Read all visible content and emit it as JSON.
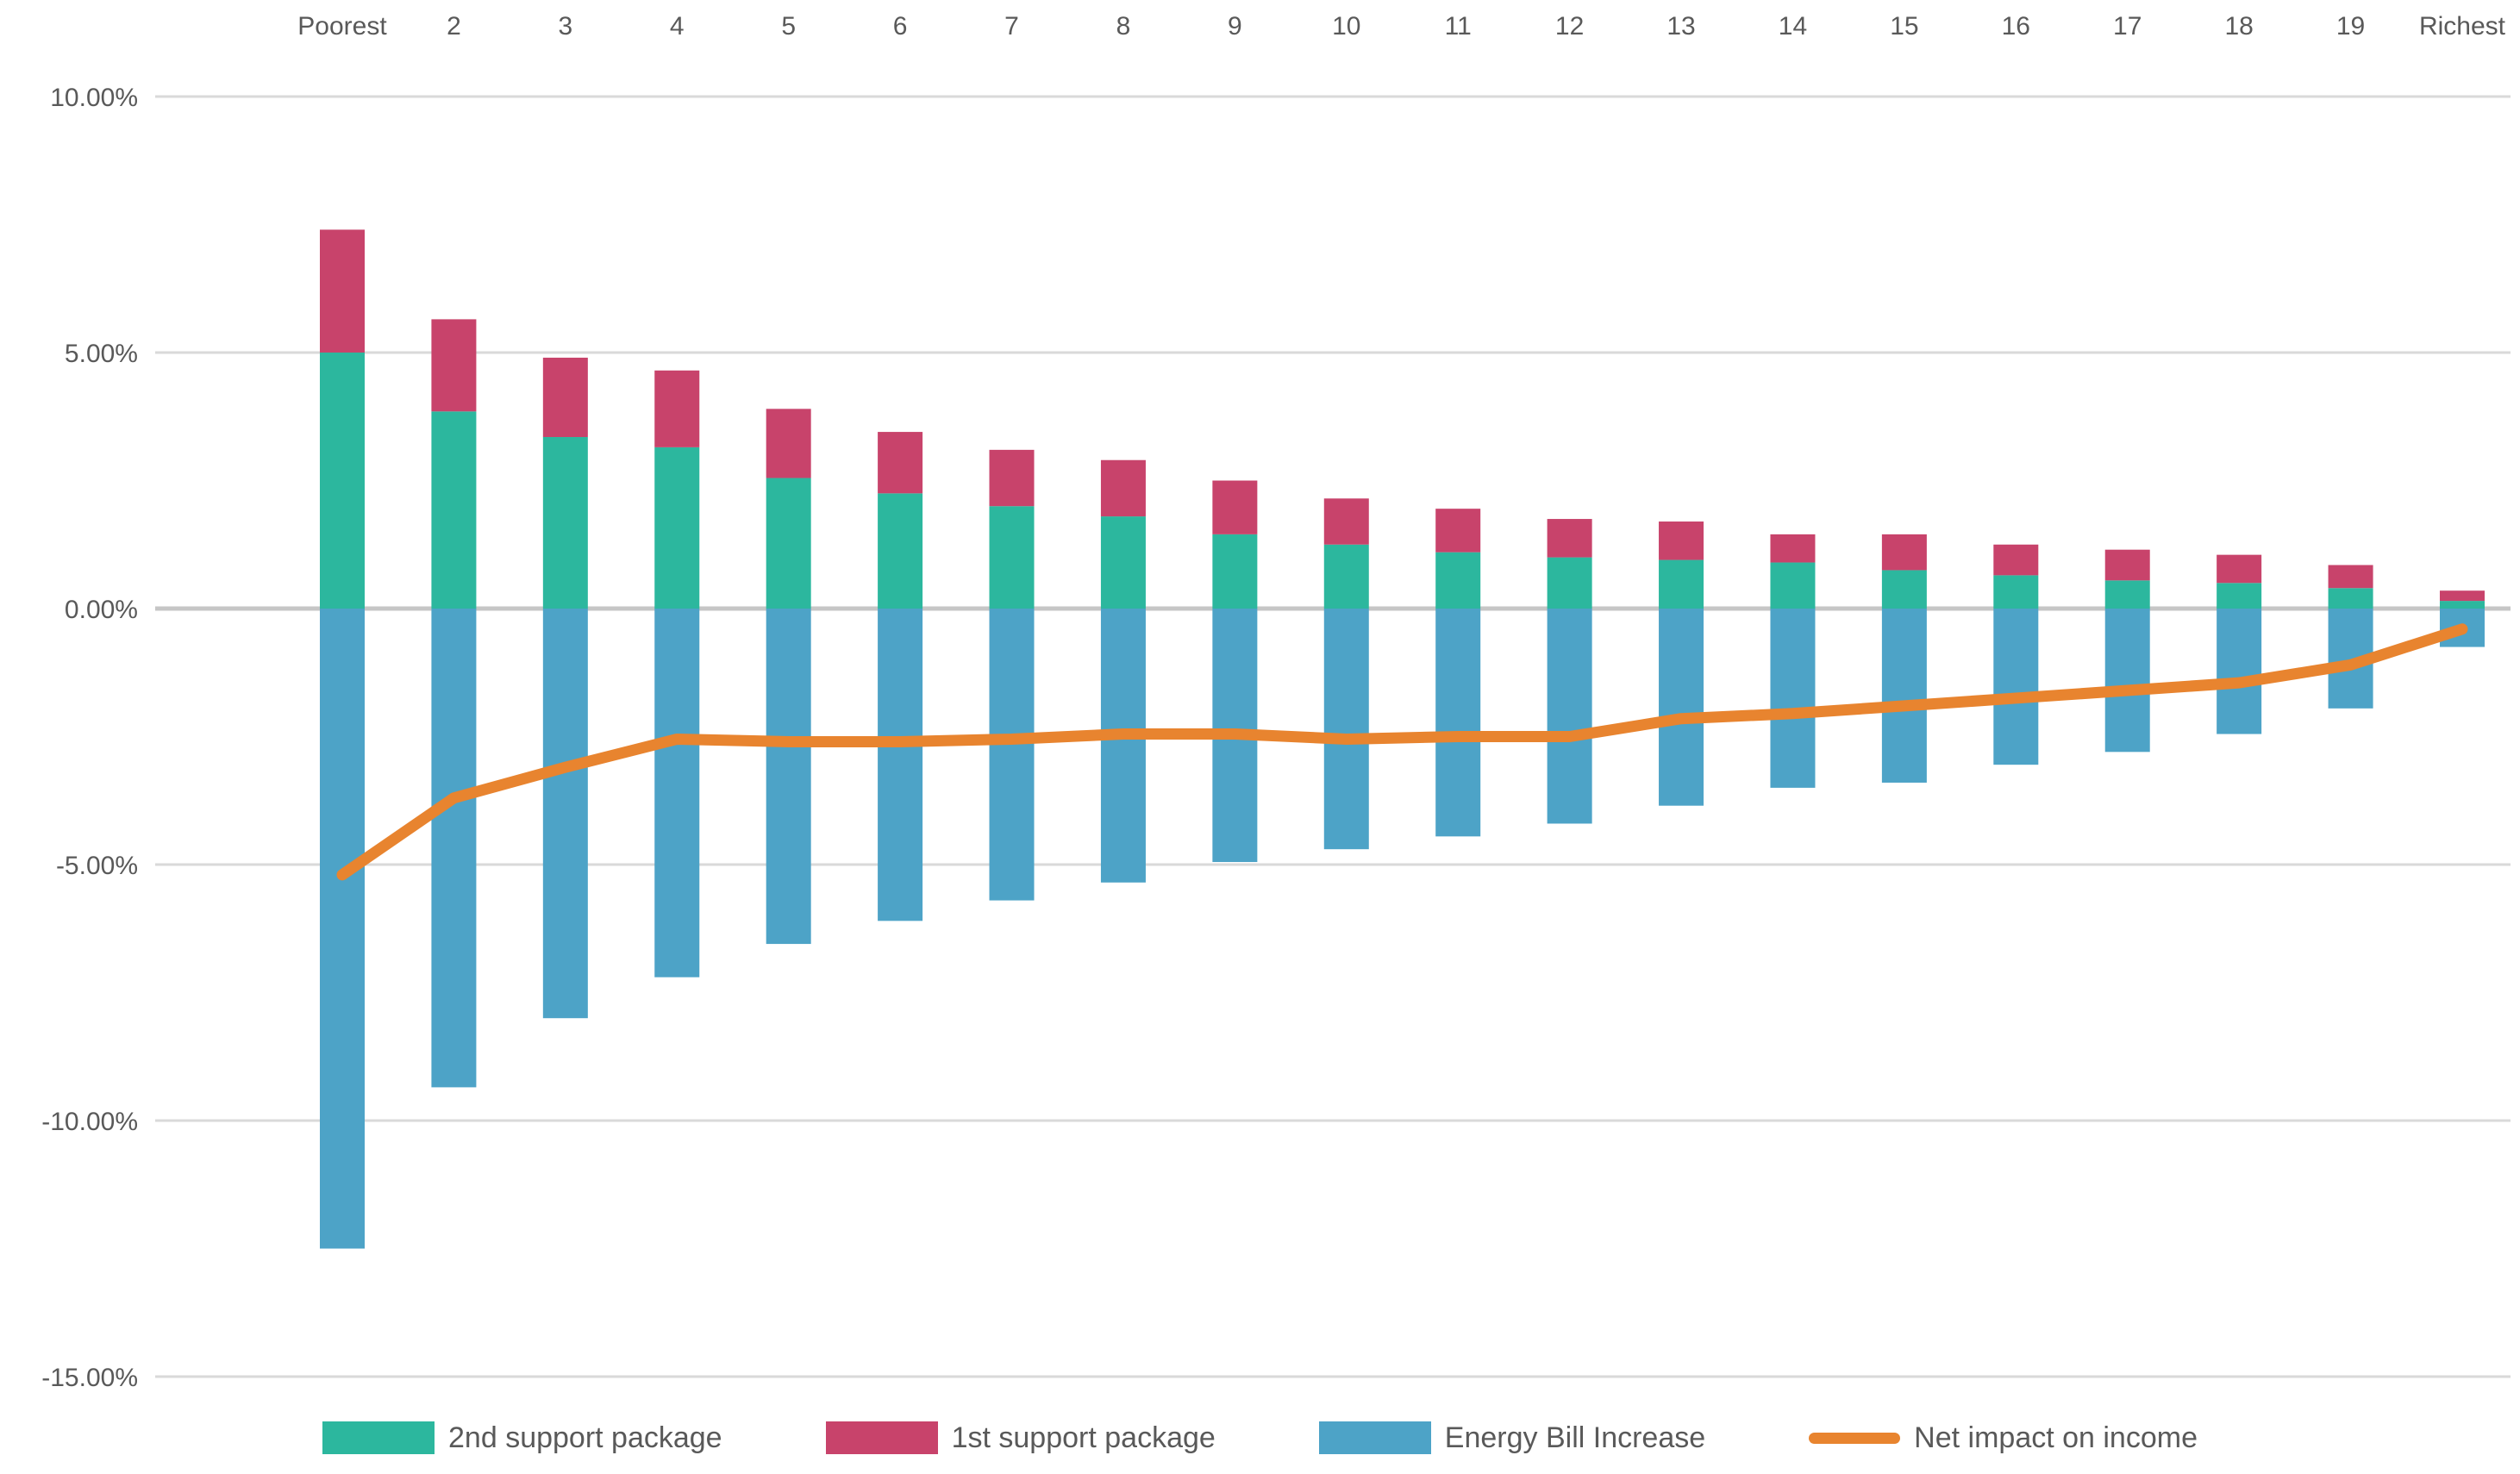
{
  "chart_data": {
    "type": "combo-stacked-bar-line",
    "title": "",
    "categories": [
      "Poorest",
      "2",
      "3",
      "4",
      "5",
      "6",
      "7",
      "8",
      "9",
      "10",
      "11",
      "12",
      "13",
      "14",
      "15",
      "16",
      "17",
      "18",
      "19",
      "Richest"
    ],
    "series": [
      {
        "name": "2nd support package",
        "type": "bar",
        "color": "#2CB79E",
        "values": [
          5.0,
          3.85,
          3.35,
          3.15,
          2.55,
          2.25,
          2.0,
          1.8,
          1.45,
          1.25,
          1.1,
          1.0,
          0.95,
          0.9,
          0.75,
          0.65,
          0.55,
          0.5,
          0.4,
          0.15
        ]
      },
      {
        "name": "1st support package",
        "type": "bar",
        "color": "#C8436B",
        "values": [
          2.4,
          1.8,
          1.55,
          1.5,
          1.35,
          1.2,
          1.1,
          1.1,
          1.05,
          0.9,
          0.85,
          0.75,
          0.75,
          0.55,
          0.7,
          0.6,
          0.6,
          0.55,
          0.45,
          0.2
        ]
      },
      {
        "name": "Energy Bill Increase",
        "type": "bar",
        "color": "#4DA3C7",
        "values": [
          -12.5,
          -9.35,
          -8.0,
          -7.2,
          -6.55,
          -6.1,
          -5.7,
          -5.35,
          -4.95,
          -4.7,
          -4.45,
          -4.2,
          -3.85,
          -3.5,
          -3.4,
          -3.05,
          -2.8,
          -2.45,
          -1.95,
          -0.75
        ]
      },
      {
        "name": "Net impact on income",
        "type": "line",
        "color": "#E8842F",
        "values": [
          -5.2,
          -3.7,
          -3.1,
          -2.55,
          -2.6,
          -2.6,
          -2.55,
          -2.45,
          -2.45,
          -2.55,
          -2.5,
          -2.5,
          -2.15,
          -2.05,
          -1.9,
          -1.75,
          -1.6,
          -1.45,
          -1.1,
          -0.4
        ]
      }
    ],
    "y_axis": {
      "ylim": [
        -15,
        10
      ],
      "ticks": [
        {
          "value": 10,
          "label": "10.00%"
        },
        {
          "value": 5,
          "label": "5.00%"
        },
        {
          "value": 0,
          "label": "0.00%"
        },
        {
          "value": -5,
          "label": "-5.00%"
        },
        {
          "value": -10,
          "label": "-10.00%"
        },
        {
          "value": -15,
          "label": "-15.00%"
        }
      ]
    },
    "x_axis": {
      "position": "top"
    },
    "grid": true,
    "legend_position": "bottom",
    "colors": {
      "text": "#595959",
      "gridline": "#D9D9D9",
      "zero_line": "#C6C6C6",
      "background": "#FFFFFF"
    }
  }
}
